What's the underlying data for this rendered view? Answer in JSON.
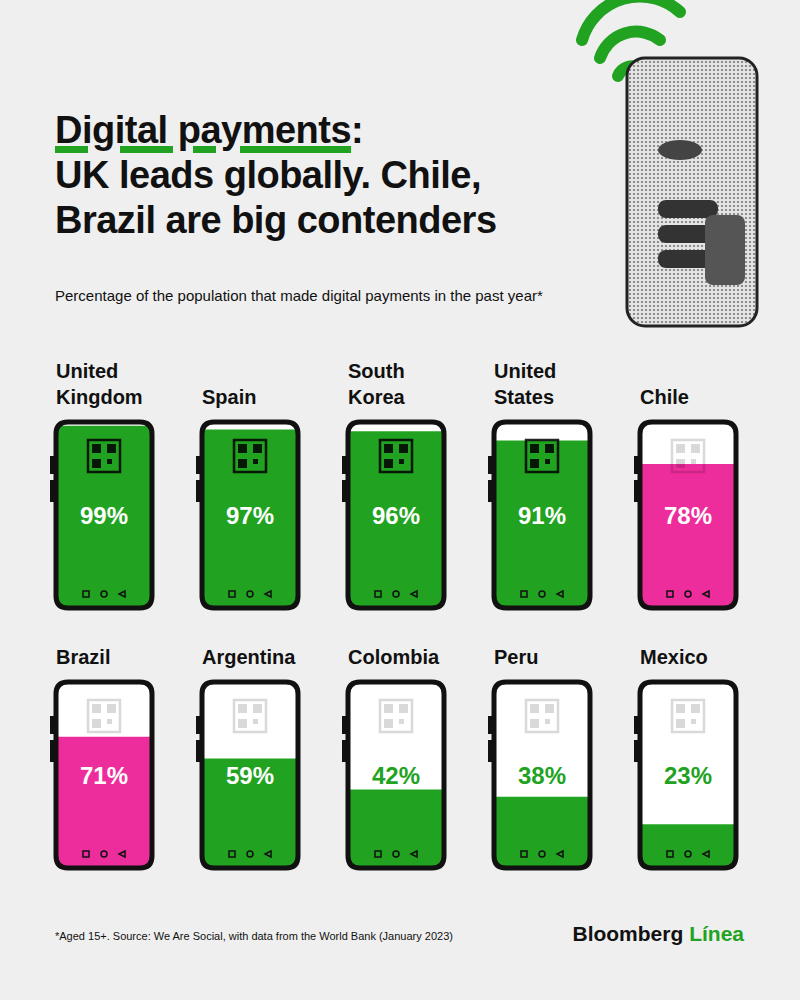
{
  "chart_data": {
    "type": "bar",
    "title": "Digital payments: UK leads globally. Chile, Brazil are big contenders",
    "subtitle": "Percentage of the population that made digital payments in the past year*",
    "categories": [
      "United Kingdom",
      "Spain",
      "South Korea",
      "United States",
      "Chile",
      "Brazil",
      "Argentina",
      "Colombia",
      "Peru",
      "Mexico"
    ],
    "values": [
      99,
      97,
      96,
      91,
      78,
      71,
      59,
      42,
      38,
      23
    ],
    "value_labels": [
      "99%",
      "97%",
      "96%",
      "91%",
      "78%",
      "71%",
      "59%",
      "42%",
      "38%",
      "23%"
    ],
    "colors": [
      "#21a321",
      "#21a321",
      "#21a321",
      "#21a321",
      "#ee2d9c",
      "#ee2d9c",
      "#21a321",
      "#21a321",
      "#21a321",
      "#21a321"
    ],
    "ylim": [
      0,
      100
    ],
    "grid": false,
    "data_labels": true,
    "tick_labels": false,
    "annotations": [
      "*Aged 15+. Source: We Are Social, with data from the World Bank (January 2023)",
      "Bloomberg Línea"
    ]
  }
}
